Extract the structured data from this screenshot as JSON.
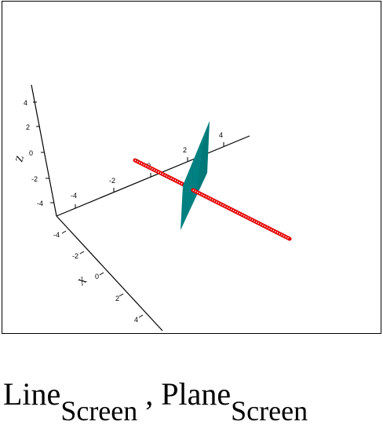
{
  "plot": {
    "axes": {
      "z_axis_label": "Z",
      "x_axis_label": "X",
      "y_axis_label": "",
      "z_ticks": [
        "4",
        "2",
        "0",
        "-2",
        "-4"
      ],
      "x_ticks": [
        "-4",
        "-2",
        "0",
        "2",
        "4"
      ],
      "y_ticks": [
        "-4",
        "-2",
        "0",
        "2",
        "4"
      ]
    },
    "plane_color": "#008080",
    "line_color": "#e60000"
  },
  "caption": {
    "line_main": "Line",
    "line_sub": "Screen",
    "separator": " , ",
    "plane_main": "Plane",
    "plane_sub": "Screen"
  }
}
